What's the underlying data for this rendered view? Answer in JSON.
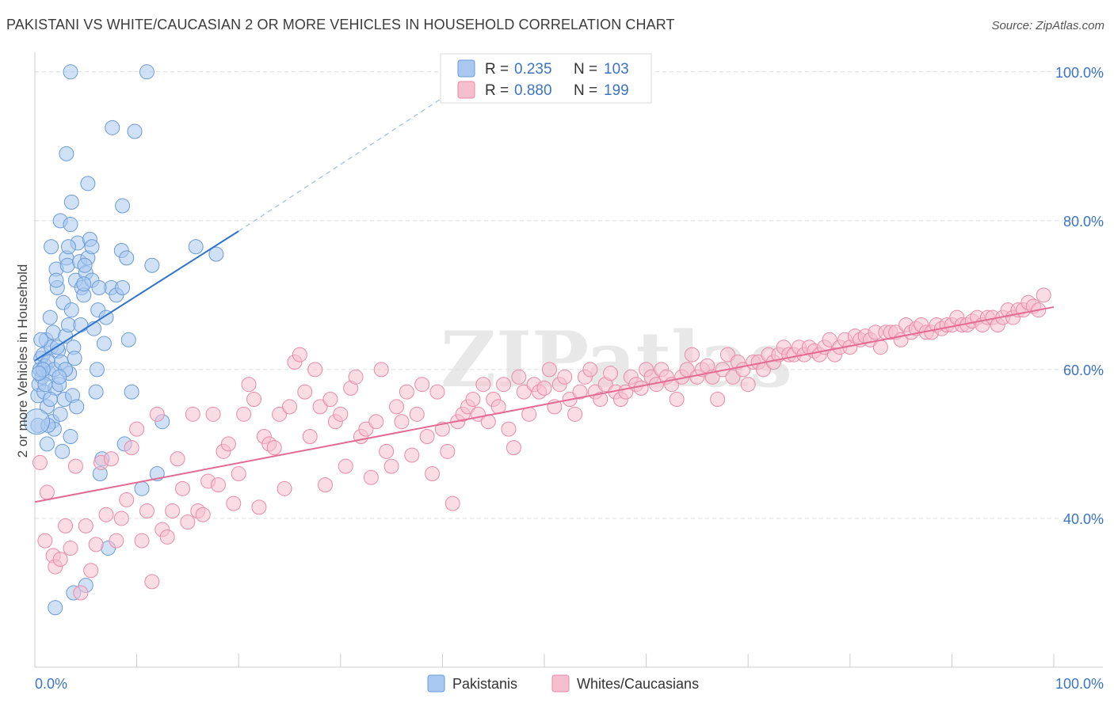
{
  "title": "PAKISTANI VS WHITE/CAUCASIAN 2 OR MORE VEHICLES IN HOUSEHOLD CORRELATION CHART",
  "source": "Source: ZipAtlas.com",
  "watermark": "ZIPatlas",
  "colors": {
    "blue_fill": "#a9c8ef",
    "blue_stroke": "#6a9bd8",
    "blue_line": "#2f73cf",
    "pink_fill": "#f6bfd0",
    "pink_stroke": "#e98aa8",
    "pink_line": "#e36a94",
    "accent_text": "#3b74c7",
    "grid": "#dcdcdc"
  },
  "legend": {
    "rows": [
      {
        "r_label": "R =",
        "r_value": "0.235",
        "n_label": "N =",
        "n_value": "103",
        "series": "blue"
      },
      {
        "r_label": "R =",
        "r_value": "0.880",
        "n_label": "N =",
        "n_value": "199",
        "series": "pink"
      }
    ]
  },
  "bottom_legend": [
    "Pakistanis",
    "Whites/Caucasians"
  ],
  "chart_data": {
    "type": "scatter",
    "title": "PAKISTANI VS WHITE/CAUCASIAN 2 OR MORE VEHICLES IN HOUSEHOLD CORRELATION CHART",
    "xlabel": "",
    "ylabel": "2 or more Vehicles in Household",
    "xlim": [
      0,
      100
    ],
    "ylim": [
      20,
      102
    ],
    "x_tick_labels": [
      "0.0%",
      "100.0%"
    ],
    "y_ticks": [
      40,
      60,
      80,
      100
    ],
    "y_tick_labels": [
      "40.0%",
      "60.0%",
      "80.0%",
      "100.0%"
    ],
    "series": [
      {
        "name": "Pakistanis",
        "r": 0.235,
        "n": 103,
        "trend": {
          "x": [
            0,
            20
          ],
          "y": [
            61.2,
            78.6
          ],
          "dashed_to": {
            "x": 40,
            "y": 96.5
          }
        },
        "points": [
          [
            0.3,
            56.5
          ],
          [
            0.3,
            52.5
          ],
          [
            0.4,
            58
          ],
          [
            0.5,
            60
          ],
          [
            0.6,
            61.5
          ],
          [
            0.7,
            59
          ],
          [
            0.8,
            62
          ],
          [
            0.9,
            57
          ],
          [
            1.0,
            60.5
          ],
          [
            1.1,
            64
          ],
          [
            1.2,
            55
          ],
          [
            1.3,
            61
          ],
          [
            1.4,
            59.5
          ],
          [
            1.5,
            67
          ],
          [
            1.6,
            63
          ],
          [
            1.7,
            53
          ],
          [
            1.8,
            65
          ],
          [
            1.9,
            60
          ],
          [
            2.0,
            57.5
          ],
          [
            2.1,
            73.5
          ],
          [
            2.2,
            71
          ],
          [
            2.3,
            62.5
          ],
          [
            2.4,
            58
          ],
          [
            2.5,
            54
          ],
          [
            2.6,
            61
          ],
          [
            2.7,
            49
          ],
          [
            2.8,
            69
          ],
          [
            2.9,
            56
          ],
          [
            3.0,
            64.5
          ],
          [
            3.1,
            75
          ],
          [
            3.2,
            74
          ],
          [
            3.3,
            66
          ],
          [
            3.4,
            59.5
          ],
          [
            3.5,
            51
          ],
          [
            3.6,
            68
          ],
          [
            3.7,
            56.5
          ],
          [
            3.8,
            63
          ],
          [
            3.9,
            61.5
          ],
          [
            4.0,
            72
          ],
          [
            4.2,
            77
          ],
          [
            4.4,
            74.5
          ],
          [
            4.6,
            71
          ],
          [
            4.8,
            70
          ],
          [
            5.0,
            73
          ],
          [
            5.2,
            75
          ],
          [
            5.4,
            77.5
          ],
          [
            5.6,
            72
          ],
          [
            5.8,
            65.5
          ],
          [
            6.0,
            57
          ],
          [
            6.2,
            68
          ],
          [
            6.4,
            46
          ],
          [
            6.6,
            48
          ],
          [
            6.8,
            63.5
          ],
          [
            7.0,
            67
          ],
          [
            7.5,
            71
          ],
          [
            8.0,
            70
          ],
          [
            8.5,
            76
          ],
          [
            9.0,
            75
          ],
          [
            9.5,
            57
          ],
          [
            10.5,
            44
          ],
          [
            12.5,
            53
          ],
          [
            12.0,
            46
          ],
          [
            15.8,
            76.5
          ],
          [
            17.8,
            75.5
          ],
          [
            3.5,
            100
          ],
          [
            11.0,
            100
          ],
          [
            7.6,
            92.5
          ],
          [
            9.8,
            92
          ],
          [
            3.1,
            89
          ],
          [
            5.2,
            85
          ],
          [
            3.6,
            82.5
          ],
          [
            8.6,
            82
          ],
          [
            2.5,
            80
          ],
          [
            3.5,
            79.5
          ],
          [
            1.6,
            76.5
          ],
          [
            3.3,
            76.5
          ],
          [
            5.6,
            76.5
          ],
          [
            4.9,
            74
          ],
          [
            11.5,
            74
          ],
          [
            2.1,
            72
          ],
          [
            4.8,
            71.5
          ],
          [
            6.3,
            71
          ],
          [
            8.6,
            71
          ],
          [
            3.0,
            60
          ],
          [
            2.4,
            59
          ],
          [
            1.0,
            58
          ],
          [
            1.2,
            50
          ],
          [
            1.9,
            52
          ],
          [
            7.2,
            36
          ],
          [
            5.0,
            31
          ],
          [
            3.8,
            30
          ],
          [
            2.0,
            28
          ],
          [
            8.8,
            50
          ],
          [
            0.8,
            60
          ],
          [
            1.5,
            56
          ],
          [
            2.2,
            63
          ],
          [
            4.5,
            66
          ],
          [
            6.1,
            60
          ],
          [
            9.2,
            64
          ],
          [
            0.6,
            64
          ],
          [
            1.3,
            52.5
          ],
          [
            4.1,
            55
          ],
          [
            0.4,
            59.5
          ]
        ]
      },
      {
        "name": "Whites/Caucasians",
        "r": 0.88,
        "n": 199,
        "trend": {
          "x": [
            0,
            100
          ],
          "y": [
            42.2,
            68.4
          ]
        },
        "points": [
          [
            0.5,
            47.5
          ],
          [
            1.0,
            37
          ],
          [
            1.2,
            43.5
          ],
          [
            1.8,
            35
          ],
          [
            2.0,
            33.5
          ],
          [
            2.5,
            34.5
          ],
          [
            3.0,
            39
          ],
          [
            3.5,
            36
          ],
          [
            4.0,
            47
          ],
          [
            4.5,
            30
          ],
          [
            5.0,
            39
          ],
          [
            5.5,
            33
          ],
          [
            6.0,
            36.5
          ],
          [
            6.5,
            47.5
          ],
          [
            7.0,
            40.5
          ],
          [
            7.5,
            48
          ],
          [
            8.0,
            37
          ],
          [
            8.5,
            40
          ],
          [
            9.0,
            42.5
          ],
          [
            9.5,
            49.5
          ],
          [
            10.0,
            52
          ],
          [
            10.5,
            37
          ],
          [
            11.0,
            41
          ],
          [
            11.5,
            31.5
          ],
          [
            12.0,
            54
          ],
          [
            12.5,
            38.5
          ],
          [
            13.0,
            37.5
          ],
          [
            13.5,
            41
          ],
          [
            14.0,
            48
          ],
          [
            14.5,
            44
          ],
          [
            15.0,
            39.5
          ],
          [
            15.5,
            54
          ],
          [
            16.0,
            41
          ],
          [
            16.5,
            40.5
          ],
          [
            17.0,
            45
          ],
          [
            17.5,
            54
          ],
          [
            18.0,
            44.5
          ],
          [
            18.5,
            49
          ],
          [
            19.0,
            50
          ],
          [
            19.5,
            42
          ],
          [
            20.0,
            46
          ],
          [
            20.5,
            54
          ],
          [
            21.0,
            58
          ],
          [
            21.5,
            56
          ],
          [
            22.0,
            41.5
          ],
          [
            22.5,
            51
          ],
          [
            23.0,
            50
          ],
          [
            23.5,
            49.5
          ],
          [
            24.0,
            54
          ],
          [
            24.5,
            44
          ],
          [
            25.0,
            55
          ],
          [
            25.5,
            61
          ],
          [
            26.0,
            62
          ],
          [
            26.5,
            57
          ],
          [
            27.0,
            51
          ],
          [
            27.5,
            60
          ],
          [
            28.0,
            55
          ],
          [
            28.5,
            44.5
          ],
          [
            29.0,
            56
          ],
          [
            29.5,
            53
          ],
          [
            30.0,
            54
          ],
          [
            30.5,
            47
          ],
          [
            31.0,
            57.5
          ],
          [
            31.5,
            59
          ],
          [
            32.0,
            51
          ],
          [
            32.5,
            52
          ],
          [
            33.0,
            45.5
          ],
          [
            33.5,
            53
          ],
          [
            34.0,
            60
          ],
          [
            34.5,
            49
          ],
          [
            35.0,
            47
          ],
          [
            35.5,
            55
          ],
          [
            36.0,
            53
          ],
          [
            36.5,
            57
          ],
          [
            37.0,
            48.5
          ],
          [
            37.5,
            54
          ],
          [
            38.0,
            58
          ],
          [
            38.5,
            51
          ],
          [
            39.0,
            46
          ],
          [
            39.5,
            57
          ],
          [
            40.0,
            52
          ],
          [
            40.5,
            49
          ],
          [
            41.0,
            42
          ],
          [
            41.5,
            53
          ],
          [
            42.0,
            54
          ],
          [
            42.5,
            55
          ],
          [
            43.0,
            56
          ],
          [
            43.5,
            54
          ],
          [
            44.0,
            58
          ],
          [
            44.5,
            53
          ],
          [
            45.0,
            56
          ],
          [
            45.5,
            55
          ],
          [
            46.0,
            58
          ],
          [
            46.5,
            52
          ],
          [
            47.0,
            49.5
          ],
          [
            47.5,
            59
          ],
          [
            48.0,
            57
          ],
          [
            48.5,
            54
          ],
          [
            49.0,
            58
          ],
          [
            49.5,
            57
          ],
          [
            50.0,
            57.5
          ],
          [
            50.5,
            60
          ],
          [
            51.0,
            55
          ],
          [
            51.5,
            58
          ],
          [
            52.0,
            59
          ],
          [
            52.5,
            56
          ],
          [
            53.0,
            54
          ],
          [
            53.5,
            57
          ],
          [
            54.0,
            59
          ],
          [
            54.5,
            60
          ],
          [
            55.0,
            57
          ],
          [
            55.5,
            56
          ],
          [
            56.0,
            58
          ],
          [
            56.5,
            59.5
          ],
          [
            57.0,
            57
          ],
          [
            57.5,
            56
          ],
          [
            58.0,
            57
          ],
          [
            58.5,
            59
          ],
          [
            59.0,
            58
          ],
          [
            59.5,
            57.5
          ],
          [
            60.0,
            60
          ],
          [
            60.5,
            59
          ],
          [
            61.0,
            58
          ],
          [
            61.5,
            60
          ],
          [
            62.0,
            59
          ],
          [
            62.5,
            58
          ],
          [
            63.0,
            56
          ],
          [
            63.5,
            59
          ],
          [
            64.0,
            60
          ],
          [
            64.5,
            62
          ],
          [
            65.0,
            59
          ],
          [
            65.5,
            60
          ],
          [
            66.0,
            60.5
          ],
          [
            66.5,
            59
          ],
          [
            67.0,
            56
          ],
          [
            67.5,
            60
          ],
          [
            68.0,
            62
          ],
          [
            68.5,
            59
          ],
          [
            69.0,
            61
          ],
          [
            69.5,
            60
          ],
          [
            70.0,
            58
          ],
          [
            70.5,
            61
          ],
          [
            71.0,
            61
          ],
          [
            71.5,
            60
          ],
          [
            72.0,
            62
          ],
          [
            72.5,
            61
          ],
          [
            73.0,
            62
          ],
          [
            73.5,
            63
          ],
          [
            74.0,
            62
          ],
          [
            74.5,
            62
          ],
          [
            75.0,
            63
          ],
          [
            75.5,
            62
          ],
          [
            76.0,
            63
          ],
          [
            76.5,
            62.5
          ],
          [
            77.0,
            62
          ],
          [
            77.5,
            63
          ],
          [
            78.0,
            64
          ],
          [
            78.5,
            62
          ],
          [
            79.0,
            63
          ],
          [
            79.5,
            64
          ],
          [
            80.0,
            63
          ],
          [
            80.5,
            64.5
          ],
          [
            81.0,
            64
          ],
          [
            81.5,
            64.5
          ],
          [
            82.0,
            64
          ],
          [
            82.5,
            65
          ],
          [
            83.0,
            63
          ],
          [
            83.5,
            65
          ],
          [
            84.0,
            65
          ],
          [
            84.5,
            65
          ],
          [
            85.0,
            64
          ],
          [
            85.5,
            66
          ],
          [
            86.0,
            65
          ],
          [
            86.5,
            65.5
          ],
          [
            87.0,
            66
          ],
          [
            87.5,
            65
          ],
          [
            88.0,
            65
          ],
          [
            88.5,
            66
          ],
          [
            89.0,
            65.5
          ],
          [
            89.5,
            66
          ],
          [
            90.0,
            66
          ],
          [
            90.5,
            67
          ],
          [
            91.0,
            66
          ],
          [
            91.5,
            66
          ],
          [
            92.0,
            66.5
          ],
          [
            92.5,
            67
          ],
          [
            93.0,
            66
          ],
          [
            93.5,
            67
          ],
          [
            94.0,
            67
          ],
          [
            94.5,
            66
          ],
          [
            95.0,
            67
          ],
          [
            95.5,
            68
          ],
          [
            96.0,
            67
          ],
          [
            96.5,
            68
          ],
          [
            97.0,
            68
          ],
          [
            97.5,
            69
          ],
          [
            98.0,
            68.5
          ],
          [
            98.5,
            68
          ],
          [
            99.0,
            70
          ]
        ]
      }
    ]
  }
}
